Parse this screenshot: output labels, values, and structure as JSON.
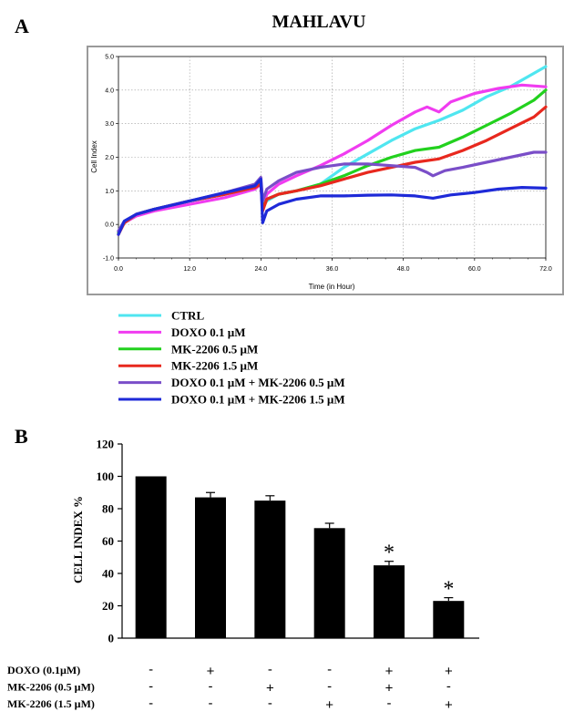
{
  "panel_a": {
    "label": "A",
    "chart_data": {
      "type": "line",
      "title": "MAHLAVU",
      "xlabel": "Time (in Hour)",
      "ylabel": "Cell Index",
      "xlim": [
        0,
        72
      ],
      "ylim": [
        -1,
        5
      ],
      "xticks": [
        "0.0",
        "12.0",
        "24.0",
        "36.0",
        "48.0",
        "60.0",
        "72.0"
      ],
      "yticks": [
        "-1.0",
        "0.0",
        "1.0",
        "2.0",
        "3.0",
        "4.0",
        "5.0"
      ],
      "grid": true,
      "legend_position": "bottom",
      "series": [
        {
          "name": "CTRL",
          "color": "#4fe6f0",
          "points": [
            [
              0,
              -0.2
            ],
            [
              1,
              0.1
            ],
            [
              3,
              0.3
            ],
            [
              6,
              0.45
            ],
            [
              12,
              0.7
            ],
            [
              18,
              0.9
            ],
            [
              23,
              1.15
            ],
            [
              24,
              1.3
            ],
            [
              24.3,
              0.5
            ],
            [
              25,
              0.7
            ],
            [
              27,
              0.9
            ],
            [
              30,
              1.0
            ],
            [
              34,
              1.2
            ],
            [
              38,
              1.7
            ],
            [
              42,
              2.1
            ],
            [
              46,
              2.5
            ],
            [
              50,
              2.85
            ],
            [
              54,
              3.1
            ],
            [
              58,
              3.4
            ],
            [
              62,
              3.8
            ],
            [
              66,
              4.1
            ],
            [
              70,
              4.5
            ],
            [
              72,
              4.7
            ]
          ]
        },
        {
          "name": "DOXO     0.1 µM",
          "color": "#f03cf0",
          "points": [
            [
              0,
              -0.2
            ],
            [
              1,
              0.05
            ],
            [
              3,
              0.25
            ],
            [
              6,
              0.4
            ],
            [
              12,
              0.6
            ],
            [
              18,
              0.8
            ],
            [
              23,
              1.05
            ],
            [
              24,
              1.2
            ],
            [
              24.3,
              0.5
            ],
            [
              25,
              0.9
            ],
            [
              27,
              1.2
            ],
            [
              30,
              1.45
            ],
            [
              34,
              1.75
            ],
            [
              38,
              2.1
            ],
            [
              42,
              2.5
            ],
            [
              46,
              2.95
            ],
            [
              50,
              3.35
            ],
            [
              52,
              3.5
            ],
            [
              54,
              3.35
            ],
            [
              56,
              3.65
            ],
            [
              60,
              3.9
            ],
            [
              64,
              4.05
            ],
            [
              68,
              4.15
            ],
            [
              72,
              4.1
            ]
          ]
        },
        {
          "name": "MK-2206  0.5 µM",
          "color": "#22d11e",
          "points": [
            [
              0,
              -0.25
            ],
            [
              1,
              0.05
            ],
            [
              3,
              0.3
            ],
            [
              6,
              0.45
            ],
            [
              12,
              0.7
            ],
            [
              18,
              0.9
            ],
            [
              23,
              1.1
            ],
            [
              24,
              1.25
            ],
            [
              24.3,
              0.45
            ],
            [
              25,
              0.75
            ],
            [
              27,
              0.9
            ],
            [
              30,
              1.0
            ],
            [
              34,
              1.2
            ],
            [
              38,
              1.45
            ],
            [
              42,
              1.75
            ],
            [
              46,
              2.0
            ],
            [
              50,
              2.2
            ],
            [
              54,
              2.3
            ],
            [
              58,
              2.6
            ],
            [
              62,
              2.95
            ],
            [
              66,
              3.3
            ],
            [
              70,
              3.7
            ],
            [
              72,
              4.0
            ]
          ]
        },
        {
          "name": "MK-2206  1.5 µM",
          "color": "#e8281e",
          "points": [
            [
              0,
              -0.3
            ],
            [
              1,
              0.05
            ],
            [
              3,
              0.3
            ],
            [
              6,
              0.45
            ],
            [
              12,
              0.7
            ],
            [
              18,
              0.9
            ],
            [
              23,
              1.1
            ],
            [
              24,
              1.2
            ],
            [
              24.3,
              0.4
            ],
            [
              25,
              0.75
            ],
            [
              27,
              0.9
            ],
            [
              30,
              1.0
            ],
            [
              34,
              1.15
            ],
            [
              38,
              1.35
            ],
            [
              42,
              1.55
            ],
            [
              46,
              1.7
            ],
            [
              50,
              1.85
            ],
            [
              54,
              1.95
            ],
            [
              58,
              2.2
            ],
            [
              62,
              2.5
            ],
            [
              66,
              2.85
            ],
            [
              70,
              3.2
            ],
            [
              72,
              3.5
            ]
          ]
        },
        {
          "name": "DOXO  0.1 µM + MK-2206  0.5 µM",
          "color": "#7a4ec8",
          "points": [
            [
              0,
              -0.2
            ],
            [
              1,
              0.1
            ],
            [
              3,
              0.3
            ],
            [
              6,
              0.45
            ],
            [
              12,
              0.7
            ],
            [
              18,
              0.95
            ],
            [
              23,
              1.2
            ],
            [
              24,
              1.4
            ],
            [
              24.3,
              0.7
            ],
            [
              25,
              1.05
            ],
            [
              27,
              1.3
            ],
            [
              30,
              1.55
            ],
            [
              34,
              1.7
            ],
            [
              38,
              1.8
            ],
            [
              42,
              1.8
            ],
            [
              46,
              1.75
            ],
            [
              50,
              1.7
            ],
            [
              52,
              1.55
            ],
            [
              53,
              1.45
            ],
            [
              55,
              1.6
            ],
            [
              58,
              1.7
            ],
            [
              62,
              1.85
            ],
            [
              66,
              2.0
            ],
            [
              70,
              2.15
            ],
            [
              72,
              2.15
            ]
          ]
        },
        {
          "name": "DOXO  0.1 µM + MK-2206  1.5 µM",
          "color": "#1e2ad8",
          "points": [
            [
              0,
              -0.3
            ],
            [
              1,
              0.1
            ],
            [
              3,
              0.3
            ],
            [
              6,
              0.45
            ],
            [
              12,
              0.7
            ],
            [
              18,
              0.95
            ],
            [
              23,
              1.15
            ],
            [
              24,
              1.35
            ],
            [
              24.3,
              0.05
            ],
            [
              25,
              0.4
            ],
            [
              27,
              0.6
            ],
            [
              30,
              0.75
            ],
            [
              34,
              0.85
            ],
            [
              38,
              0.85
            ],
            [
              42,
              0.87
            ],
            [
              46,
              0.88
            ],
            [
              50,
              0.85
            ],
            [
              53,
              0.78
            ],
            [
              56,
              0.88
            ],
            [
              60,
              0.95
            ],
            [
              64,
              1.05
            ],
            [
              68,
              1.1
            ],
            [
              72,
              1.08
            ]
          ]
        }
      ]
    }
  },
  "panel_b": {
    "label": "B",
    "chart_data": {
      "type": "bar",
      "ylabel": "CELL INDEX  %",
      "ylim": [
        0,
        120
      ],
      "yticks": [
        "0",
        "20",
        "40",
        "60",
        "80",
        "100",
        "120"
      ],
      "values": [
        100,
        87,
        85,
        68,
        45,
        23
      ],
      "errors": [
        0,
        3,
        3,
        3,
        2.5,
        2
      ],
      "significance": [
        "",
        "",
        "",
        "",
        "*",
        "*"
      ],
      "bar_color": "#000000",
      "conditions": [
        {
          "label": "DOXO (0.1µM)",
          "signs": [
            "-",
            "+",
            "-",
            "-",
            "+",
            "+"
          ]
        },
        {
          "label": "MK-2206 (0.5 µM)",
          "signs": [
            "-",
            "-",
            "+",
            "-",
            "+",
            "-"
          ]
        },
        {
          "label": "MK-2206 (1.5 µM)",
          "signs": [
            "-",
            "-",
            "-",
            "+",
            "-",
            "+"
          ]
        }
      ]
    }
  }
}
